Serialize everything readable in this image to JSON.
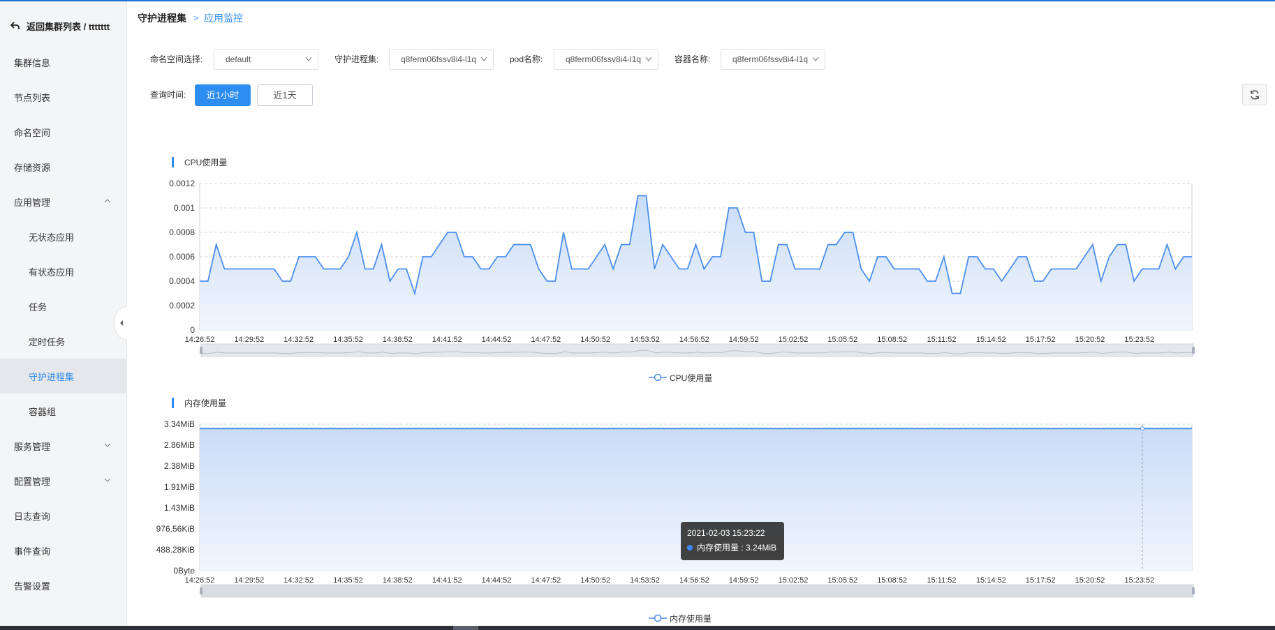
{
  "sidebar": {
    "back_label": "返回集群列表 / ttttttt",
    "items": [
      {
        "label": "集群信息"
      },
      {
        "label": "节点列表"
      },
      {
        "label": "命名空间"
      },
      {
        "label": "存储资源"
      },
      {
        "label": "应用管理"
      },
      {
        "label": "无状态应用"
      },
      {
        "label": "有状态应用"
      },
      {
        "label": "任务"
      },
      {
        "label": "定时任务"
      },
      {
        "label": "守护进程集"
      },
      {
        "label": "容器组"
      },
      {
        "label": "服务管理"
      },
      {
        "label": "配置管理"
      },
      {
        "label": "日志查询"
      },
      {
        "label": "事件查询"
      },
      {
        "label": "告警设置"
      }
    ],
    "active_item": "守护进程集"
  },
  "breadcrumb": {
    "parent": "守护进程集",
    "current": "应用监控"
  },
  "filters": {
    "namespace_label": "命名空间选择:",
    "namespace_value": "default",
    "daemonset_label": "守护进程集:",
    "daemonset_value": "q8ferm06fssv8i4-l1q",
    "pod_label": "pod名称:",
    "pod_value": "q8ferm06fssv8i4-l1q",
    "container_label": "容器名称:",
    "container_value": "q8ferm06fssv8i4-l1q",
    "time_label": "查询时间:",
    "time_options": [
      "近1小时",
      "近1天"
    ],
    "time_selected": "近1小时"
  },
  "colors": {
    "accent": "#2d8cf0",
    "series": "#4b8eee"
  },
  "chart_data": [
    {
      "type": "area",
      "title": "CPU使用量",
      "legend": "CPU使用量",
      "legend_position": "bottom-center",
      "y_ticks": [
        "0",
        "0.0002",
        "0.0004",
        "0.0006",
        "0.0008",
        "0.001",
        "0.0012"
      ],
      "ylim": [
        0,
        0.0012
      ],
      "x_ticks": [
        "14:26:52",
        "14:29:52",
        "14:32:52",
        "14:35:52",
        "14:38:52",
        "14:41:52",
        "14:44:52",
        "14:47:52",
        "14:50:52",
        "14:53:52",
        "14:56:52",
        "14:59:52",
        "15:02:52",
        "15:05:52",
        "15:08:52",
        "15:11:52",
        "15:14:52",
        "15:17:52",
        "15:20:52",
        "15:23:52"
      ],
      "grid": true,
      "series": [
        {
          "name": "CPU使用量",
          "values": [
            0.0004,
            0.0004,
            0.0007,
            0.0005,
            0.0005,
            0.0005,
            0.0005,
            0.0005,
            0.0005,
            0.0005,
            0.0004,
            0.0004,
            0.0006,
            0.0006,
            0.0006,
            0.0005,
            0.0005,
            0.0005,
            0.0006,
            0.0008,
            0.0005,
            0.0005,
            0.0007,
            0.0004,
            0.0005,
            0.0005,
            0.0003,
            0.0006,
            0.0006,
            0.0007,
            0.0008,
            0.0008,
            0.0006,
            0.0006,
            0.0005,
            0.0005,
            0.0006,
            0.0006,
            0.0007,
            0.0007,
            0.0007,
            0.0005,
            0.0004,
            0.0004,
            0.0008,
            0.0005,
            0.0005,
            0.0005,
            0.0006,
            0.0007,
            0.0005,
            0.0007,
            0.0007,
            0.0011,
            0.0011,
            0.0005,
            0.0007,
            0.0006,
            0.0005,
            0.0005,
            0.0007,
            0.0005,
            0.0006,
            0.0006,
            0.001,
            0.001,
            0.0008,
            0.0008,
            0.0004,
            0.0004,
            0.0007,
            0.0007,
            0.0005,
            0.0005,
            0.0005,
            0.0005,
            0.0007,
            0.0007,
            0.0008,
            0.0008,
            0.0005,
            0.0004,
            0.0006,
            0.0006,
            0.0005,
            0.0005,
            0.0005,
            0.0005,
            0.0004,
            0.0004,
            0.0006,
            0.0003,
            0.0003,
            0.0006,
            0.0006,
            0.0005,
            0.0005,
            0.0004,
            0.0005,
            0.0006,
            0.0006,
            0.0004,
            0.0004,
            0.0005,
            0.0005,
            0.0005,
            0.0005,
            0.0006,
            0.0007,
            0.0004,
            0.0006,
            0.0007,
            0.0007,
            0.0004,
            0.0005,
            0.0005,
            0.0005,
            0.0007,
            0.0005,
            0.0006,
            0.0006
          ]
        }
      ]
    },
    {
      "type": "area",
      "title": "内存使用量",
      "legend": "内存使用量",
      "legend_position": "bottom-center",
      "y_ticks": [
        "0Byte",
        "488.28KiB",
        "976.56KiB",
        "1.43MiB",
        "1.91MiB",
        "2.38MiB",
        "2.86MiB",
        "3.34MiB"
      ],
      "ylim_mib": [
        0,
        3.34
      ],
      "x_ticks": [
        "14:26:52",
        "14:29:52",
        "14:32:52",
        "14:35:52",
        "14:38:52",
        "14:41:52",
        "14:44:52",
        "14:47:52",
        "14:50:52",
        "14:53:52",
        "14:56:52",
        "14:59:52",
        "15:02:52",
        "15:05:52",
        "15:08:52",
        "15:11:52",
        "15:14:52",
        "15:17:52",
        "15:20:52",
        "15:23:52"
      ],
      "grid": true,
      "series": [
        {
          "name": "内存使用量",
          "constant_value_mib": 3.24
        }
      ],
      "tooltip": {
        "time": "2021-02-03 15:23:22",
        "label": "内存使用量 : 3.24MiB"
      }
    }
  ]
}
